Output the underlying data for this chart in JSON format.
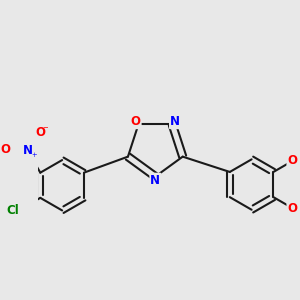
{
  "background_color": "#e8e8e8",
  "bond_color": "#1a1a1a",
  "bond_width": 1.5,
  "atom_colors": {
    "O": "#ff0000",
    "N": "#0000ff",
    "Cl": "#008000",
    "C": "#1a1a1a"
  },
  "font_size_atom": 8.5,
  "fig_size": [
    3.0,
    3.0
  ],
  "dpi": 100
}
